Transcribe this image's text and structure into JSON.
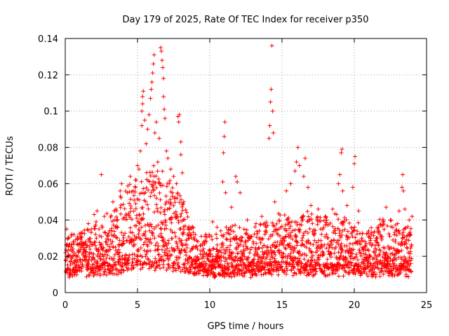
{
  "chart_data": {
    "type": "scatter",
    "title": "Day 179 of 2025, Rate Of TEC Index for receiver p350",
    "xlabel": "GPS time / hours",
    "ylabel": "ROTI / TECUs",
    "xlim": [
      0,
      25
    ],
    "ylim": [
      0,
      0.14
    ],
    "x_ticks": [
      "0",
      "5",
      "10",
      "15",
      "20",
      "25"
    ],
    "y_ticks": [
      "0",
      "0.02",
      "0.04",
      "0.06",
      "0.08",
      "0.1",
      "0.12",
      "0.14"
    ],
    "grid": true,
    "marker": "+",
    "color": "#ff0000",
    "series": [
      {
        "values_profile": [
          {
            "x": 0.0,
            "base": 0.012,
            "spread": 0.022
          },
          {
            "x": 1.0,
            "base": 0.012,
            "spread": 0.02
          },
          {
            "x": 2.0,
            "base": 0.013,
            "spread": 0.026
          },
          {
            "x": 3.0,
            "base": 0.013,
            "spread": 0.03
          },
          {
            "x": 4.0,
            "base": 0.015,
            "spread": 0.042
          },
          {
            "x": 5.0,
            "base": 0.018,
            "spread": 0.05
          },
          {
            "x": 6.0,
            "base": 0.018,
            "spread": 0.055
          },
          {
            "x": 7.0,
            "base": 0.018,
            "spread": 0.048
          },
          {
            "x": 8.0,
            "base": 0.015,
            "spread": 0.04
          },
          {
            "x": 9.0,
            "base": 0.012,
            "spread": 0.02
          },
          {
            "x": 10.0,
            "base": 0.011,
            "spread": 0.02
          },
          {
            "x": 11.0,
            "base": 0.012,
            "spread": 0.026
          },
          {
            "x": 12.0,
            "base": 0.012,
            "spread": 0.024
          },
          {
            "x": 13.0,
            "base": 0.012,
            "spread": 0.024
          },
          {
            "x": 14.0,
            "base": 0.013,
            "spread": 0.028
          },
          {
            "x": 15.0,
            "base": 0.013,
            "spread": 0.03
          },
          {
            "x": 16.0,
            "base": 0.012,
            "spread": 0.028
          },
          {
            "x": 17.0,
            "base": 0.013,
            "spread": 0.032
          },
          {
            "x": 18.0,
            "base": 0.013,
            "spread": 0.03
          },
          {
            "x": 19.0,
            "base": 0.013,
            "spread": 0.03
          },
          {
            "x": 20.0,
            "base": 0.013,
            "spread": 0.028
          },
          {
            "x": 21.0,
            "base": 0.012,
            "spread": 0.022
          },
          {
            "x": 22.0,
            "base": 0.013,
            "spread": 0.03
          },
          {
            "x": 23.0,
            "base": 0.012,
            "spread": 0.026
          },
          {
            "x": 24.0,
            "base": 0.012,
            "spread": 0.024
          }
        ],
        "outliers": [
          [
            0.1,
            0.035
          ],
          [
            0.2,
            0.03
          ],
          [
            0.6,
            0.032
          ],
          [
            1.1,
            0.033
          ],
          [
            1.6,
            0.038
          ],
          [
            2.0,
            0.043
          ],
          [
            2.2,
            0.045
          ],
          [
            2.5,
            0.065
          ],
          [
            2.7,
            0.042
          ],
          [
            3.3,
            0.05
          ],
          [
            3.5,
            0.046
          ],
          [
            3.8,
            0.056
          ],
          [
            3.9,
            0.06
          ],
          [
            4.3,
            0.055
          ],
          [
            4.5,
            0.064
          ],
          [
            4.7,
            0.056
          ],
          [
            4.9,
            0.062
          ],
          [
            5.0,
            0.07
          ],
          [
            5.1,
            0.068
          ],
          [
            5.2,
            0.078
          ],
          [
            5.3,
            0.092
          ],
          [
            5.3,
            0.1
          ],
          [
            5.35,
            0.104
          ],
          [
            5.35,
            0.108
          ],
          [
            5.4,
            0.111
          ],
          [
            5.5,
            0.095
          ],
          [
            5.6,
            0.082
          ],
          [
            5.7,
            0.09
          ],
          [
            5.8,
            0.098
          ],
          [
            5.9,
            0.107
          ],
          [
            5.95,
            0.112
          ],
          [
            6.0,
            0.116
          ],
          [
            6.05,
            0.121
          ],
          [
            6.1,
            0.126
          ],
          [
            6.15,
            0.131
          ],
          [
            6.2,
            0.088
          ],
          [
            6.3,
            0.094
          ],
          [
            6.4,
            0.072
          ],
          [
            6.5,
            0.085
          ],
          [
            6.6,
            0.135
          ],
          [
            6.65,
            0.133
          ],
          [
            6.7,
            0.128
          ],
          [
            6.75,
            0.124
          ],
          [
            6.8,
            0.118
          ],
          [
            6.8,
            0.108
          ],
          [
            6.85,
            0.101
          ],
          [
            6.9,
            0.096
          ],
          [
            7.0,
            0.078
          ],
          [
            7.1,
            0.074
          ],
          [
            7.3,
            0.068
          ],
          [
            7.5,
            0.064
          ],
          [
            7.7,
            0.06
          ],
          [
            7.8,
            0.097
          ],
          [
            7.85,
            0.094
          ],
          [
            7.9,
            0.098
          ],
          [
            8.0,
            0.083
          ],
          [
            8.0,
            0.076
          ],
          [
            8.1,
            0.066
          ],
          [
            8.2,
            0.05
          ],
          [
            8.5,
            0.035
          ],
          [
            9.0,
            0.032
          ],
          [
            9.5,
            0.027
          ],
          [
            10.2,
            0.039
          ],
          [
            10.5,
            0.036
          ],
          [
            10.9,
            0.061
          ],
          [
            10.95,
            0.077
          ],
          [
            11.0,
            0.086
          ],
          [
            11.05,
            0.094
          ],
          [
            11.1,
            0.055
          ],
          [
            11.5,
            0.047
          ],
          [
            11.8,
            0.064
          ],
          [
            11.9,
            0.061
          ],
          [
            12.1,
            0.055
          ],
          [
            12.6,
            0.04
          ],
          [
            13.2,
            0.038
          ],
          [
            13.6,
            0.042
          ],
          [
            13.9,
            0.036
          ],
          [
            14.1,
            0.085
          ],
          [
            14.15,
            0.092
          ],
          [
            14.2,
            0.105
          ],
          [
            14.25,
            0.112
          ],
          [
            14.3,
            0.136
          ],
          [
            14.35,
            0.1
          ],
          [
            14.4,
            0.088
          ],
          [
            14.5,
            0.05
          ],
          [
            14.8,
            0.04
          ],
          [
            15.3,
            0.056
          ],
          [
            15.6,
            0.06
          ],
          [
            15.9,
            0.067
          ],
          [
            16.0,
            0.072
          ],
          [
            16.1,
            0.08
          ],
          [
            16.2,
            0.07
          ],
          [
            16.5,
            0.064
          ],
          [
            16.6,
            0.074
          ],
          [
            16.8,
            0.058
          ],
          [
            17.0,
            0.048
          ],
          [
            17.5,
            0.046
          ],
          [
            18.0,
            0.042
          ],
          [
            18.5,
            0.046
          ],
          [
            18.9,
            0.06
          ],
          [
            19.0,
            0.065
          ],
          [
            19.1,
            0.077
          ],
          [
            19.15,
            0.079
          ],
          [
            19.2,
            0.056
          ],
          [
            19.5,
            0.048
          ],
          [
            19.9,
            0.058
          ],
          [
            20.0,
            0.071
          ],
          [
            20.05,
            0.075
          ],
          [
            20.3,
            0.045
          ],
          [
            21.0,
            0.034
          ],
          [
            21.6,
            0.036
          ],
          [
            22.0,
            0.039
          ],
          [
            22.2,
            0.047
          ],
          [
            22.5,
            0.04
          ],
          [
            23.0,
            0.038
          ],
          [
            23.1,
            0.045
          ],
          [
            23.3,
            0.058
          ],
          [
            23.35,
            0.065
          ],
          [
            23.4,
            0.056
          ],
          [
            23.5,
            0.046
          ],
          [
            23.8,
            0.04
          ],
          [
            23.9,
            0.032
          ],
          [
            24.0,
            0.042
          ]
        ]
      }
    ]
  }
}
